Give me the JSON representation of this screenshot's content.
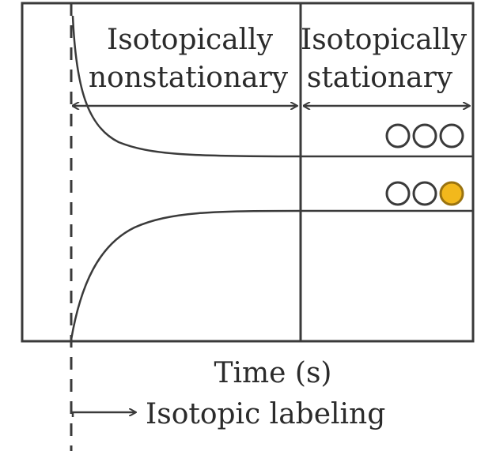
{
  "regions": {
    "nonstationary": {
      "line1": "Isotopically",
      "line2": "nonstationary"
    },
    "stationary": {
      "line1": "Isotopically",
      "line2": "stationary"
    }
  },
  "x_axis_label": "Time (s)",
  "labeling_label": "Isotopic labeling",
  "isotopomers": {
    "unlabeled": [
      false,
      false,
      false
    ],
    "labeled": [
      false,
      false,
      true
    ]
  },
  "colors": {
    "line": "#3a3a3a",
    "label_fill": "#f2b81c",
    "label_stroke": "#9a7310",
    "background": "#ffffff"
  }
}
